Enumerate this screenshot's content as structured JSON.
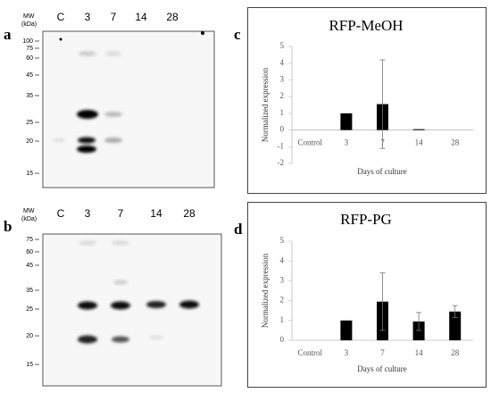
{
  "blots": [
    {
      "label": "a",
      "header": {
        "mw": "MW",
        "kda": "(kDa)"
      },
      "lanes": [
        "C",
        "3",
        "7",
        "14",
        "28"
      ],
      "markers": [
        "100",
        "75",
        "60",
        "45",
        "35",
        "25",
        "20",
        "15"
      ]
    },
    {
      "label": "b",
      "header": {
        "mw": "MW",
        "kda": "(kDa)"
      },
      "lanes": [
        "C",
        "3",
        "7",
        "14",
        "28"
      ],
      "markers": [
        "75",
        "60",
        "45",
        "35",
        "25",
        "20",
        "15"
      ]
    }
  ],
  "chart_data": [
    {
      "type": "bar",
      "panel_label": "c",
      "title": "RFP-MeOH",
      "y_label": "Normalized expression",
      "x_label": "Days of culture",
      "categories": [
        "Control",
        "3",
        "7",
        "14",
        "28"
      ],
      "values": [
        null,
        1.0,
        1.55,
        0.05,
        null
      ],
      "errors": [
        null,
        null,
        2.65,
        null,
        null
      ],
      "color": "#000000",
      "ylim": [
        -2,
        5
      ],
      "yticks": [
        -2,
        -1,
        0,
        1,
        2,
        3,
        4,
        5
      ]
    },
    {
      "type": "bar",
      "panel_label": "d",
      "title": "RFP-PG",
      "y_label": "Normalized expression",
      "x_label": "Days of culture",
      "categories": [
        "Control",
        "3",
        "7",
        "14",
        "28"
      ],
      "values": [
        null,
        1.0,
        1.95,
        0.95,
        1.45
      ],
      "errors": [
        null,
        null,
        1.45,
        0.45,
        0.3
      ],
      "color": "#000000",
      "ylim": [
        0,
        5
      ],
      "yticks": [
        0,
        1,
        2,
        3,
        4,
        5
      ]
    }
  ]
}
